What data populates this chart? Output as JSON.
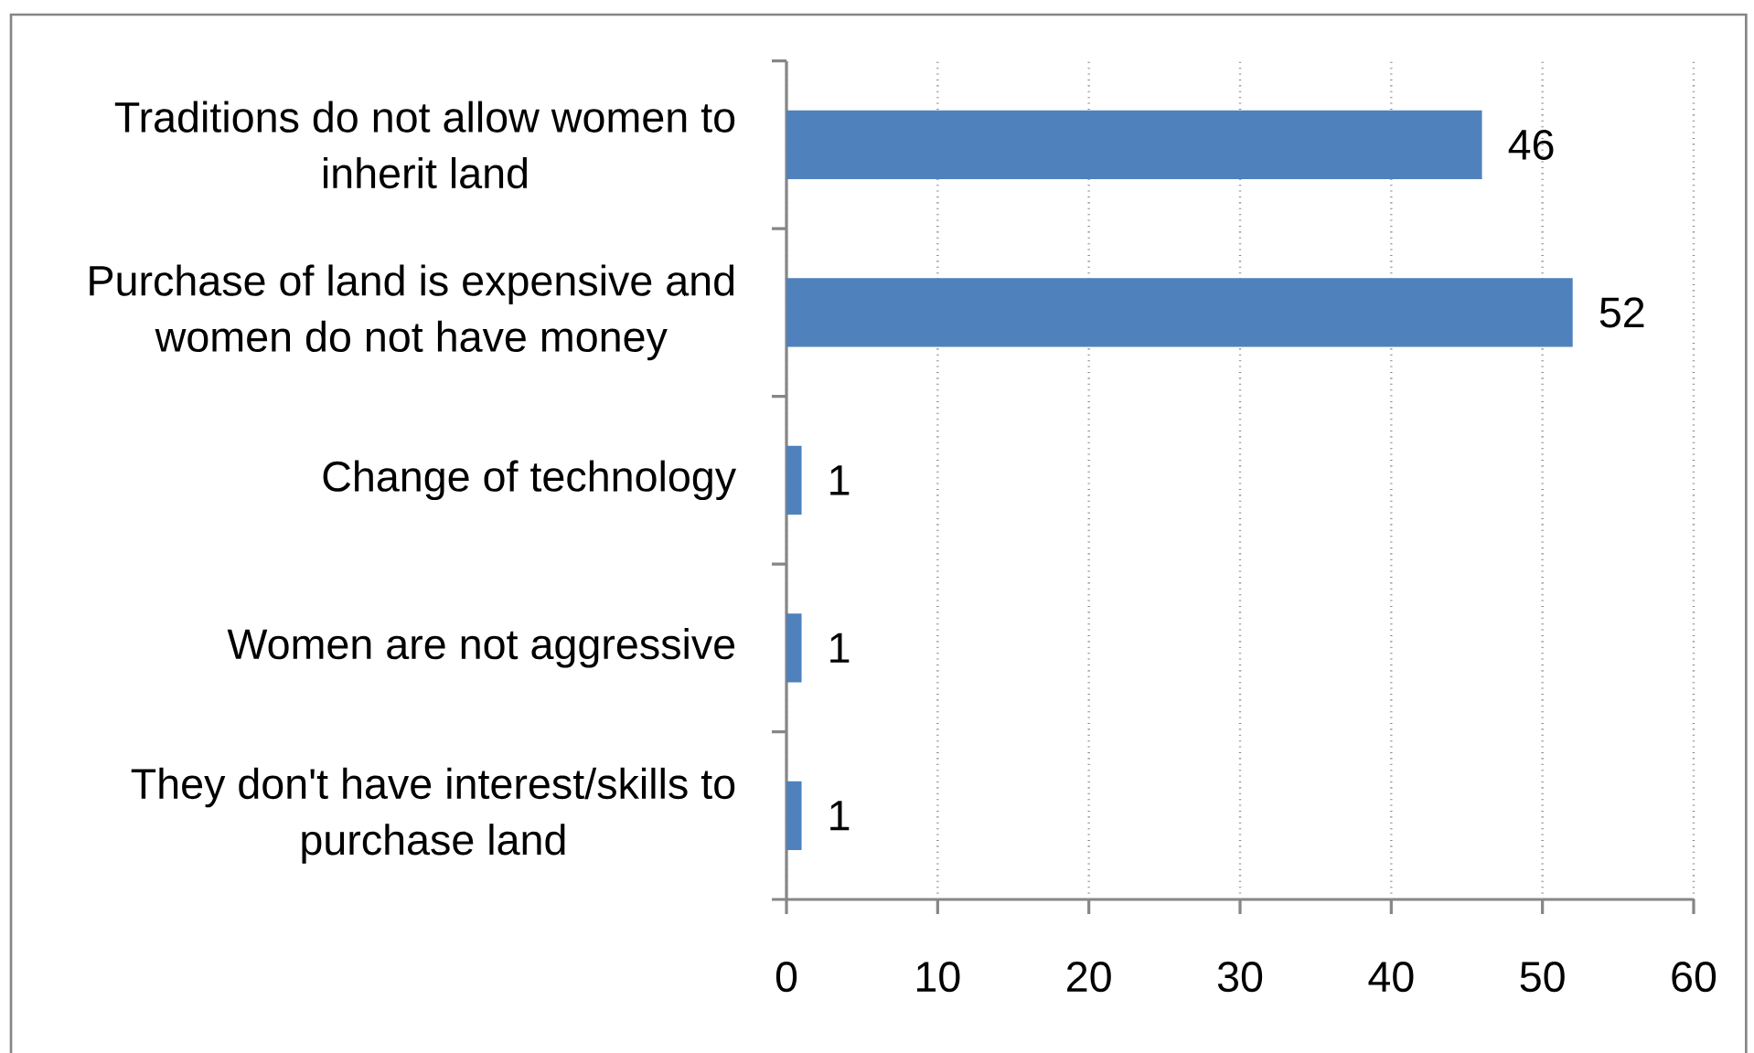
{
  "chart_data": {
    "type": "bar",
    "orientation": "horizontal",
    "categories": [
      "Traditions do not allow women to inherit land",
      "Purchase of land is expensive and women do not have money",
      "Change of technology",
      "Women are not aggressive",
      "They don't have interest/skills to purchase land"
    ],
    "values": [
      46,
      52,
      1,
      1,
      1
    ],
    "color": "#4f81bd",
    "xlim": [
      0,
      60
    ],
    "xticks": [
      0,
      10,
      20,
      30,
      40,
      50,
      60
    ],
    "grid": "x",
    "data_labels": true
  }
}
